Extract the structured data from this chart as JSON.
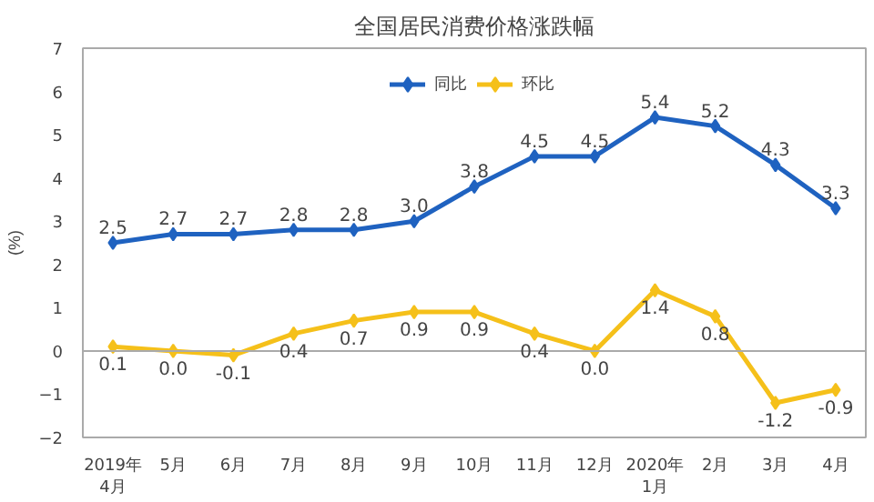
{
  "chart_data": {
    "type": "line",
    "title": "全国居民消费价格涨跌幅",
    "ylabel": "(%)",
    "categories": [
      "2019年\n4月",
      "5月",
      "6月",
      "7月",
      "8月",
      "9月",
      "10月",
      "11月",
      "12月",
      "2020年\n1月",
      "2月",
      "3月",
      "4月"
    ],
    "series": [
      {
        "name": "同比",
        "color": "#1f62c0",
        "values": [
          2.5,
          2.7,
          2.7,
          2.8,
          2.8,
          3.0,
          3.8,
          4.5,
          4.5,
          5.4,
          5.2,
          4.3,
          3.3
        ],
        "value_labels": [
          "2.5",
          "2.7",
          "2.7",
          "2.8",
          "2.8",
          "3.0",
          "3.8",
          "4.5",
          "4.5",
          "5.4",
          "5.2",
          "4.3",
          "3.3"
        ]
      },
      {
        "name": "环比",
        "color": "#f5c01a",
        "values": [
          0.1,
          0.0,
          -0.1,
          0.4,
          0.7,
          0.9,
          0.9,
          0.4,
          0.0,
          1.4,
          0.8,
          -1.2,
          -0.9
        ],
        "value_labels": [
          "0.1",
          "0.0",
          "-0.1",
          "0.4",
          "0.7",
          "0.9",
          "0.9",
          "0.4",
          "0.0",
          "1.4",
          "0.8",
          "-1.2",
          "-0.9"
        ]
      }
    ],
    "ylim": [
      -2,
      7
    ],
    "yticks": [
      -2,
      -1,
      0,
      1,
      2,
      3,
      4,
      5,
      6,
      7
    ],
    "ref_lines": [
      {
        "axis": "y",
        "value": 0,
        "color": "#aaaaaa"
      }
    ],
    "grid": false,
    "legend": "top",
    "marker": "diamond",
    "line_style": "solid"
  }
}
